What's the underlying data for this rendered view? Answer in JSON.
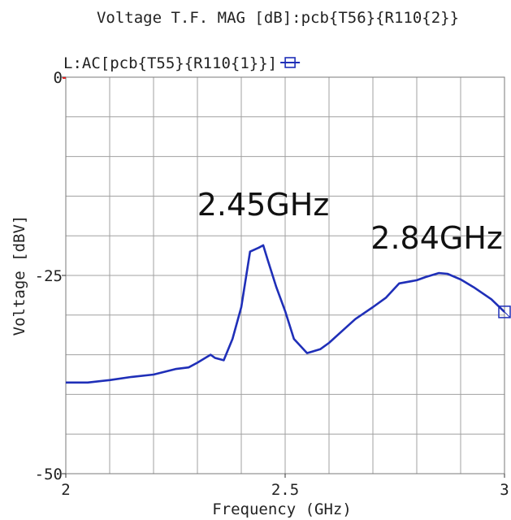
{
  "chart_data": {
    "type": "line",
    "title": "Voltage T.F. MAG [dB]:pcb{T56}{R110{2}}",
    "xlabel": "Frequency (GHz)",
    "ylabel": "Voltage [dBV]",
    "xlim": [
      2,
      3
    ],
    "ylim": [
      -50,
      0
    ],
    "x_ticks": [
      2,
      2.5,
      3
    ],
    "x_tick_labels": [
      "2",
      "2.5",
      "3"
    ],
    "y_ticks": [
      0,
      -25,
      -50
    ],
    "y_tick_labels": [
      "0",
      "-25",
      "-50"
    ],
    "grid": true,
    "legend_position": "top-left",
    "series": [
      {
        "name": "L:AC[pcb{T55}{R110{1}}]",
        "color": "#1f2fb8",
        "marker": "square-crossed",
        "x": [
          2.0,
          2.05,
          2.1,
          2.15,
          2.2,
          2.25,
          2.28,
          2.3,
          2.33,
          2.34,
          2.36,
          2.38,
          2.4,
          2.42,
          2.44,
          2.45,
          2.46,
          2.48,
          2.5,
          2.52,
          2.55,
          2.58,
          2.6,
          2.63,
          2.66,
          2.7,
          2.73,
          2.76,
          2.8,
          2.82,
          2.85,
          2.87,
          2.9,
          2.93,
          2.97,
          3.0
        ],
        "values": [
          -38.5,
          -38.5,
          -38.2,
          -37.8,
          -37.5,
          -36.8,
          -36.6,
          -36.0,
          -35.0,
          -35.4,
          -35.7,
          -33.0,
          -29.0,
          -22.0,
          -21.5,
          -21.2,
          -23.0,
          -26.5,
          -29.5,
          -33.0,
          -34.8,
          -34.3,
          -33.5,
          -32.0,
          -30.5,
          -29.0,
          -27.8,
          -26.0,
          -25.6,
          -25.2,
          -24.7,
          -24.8,
          -25.5,
          -26.5,
          -28.0,
          -29.6
        ]
      }
    ],
    "annotations": [
      {
        "text": "2.45GHz",
        "x": 2.45,
        "y": -21.2
      },
      {
        "text": "2.84GHz",
        "x": 2.84,
        "y": -24.7
      }
    ]
  }
}
